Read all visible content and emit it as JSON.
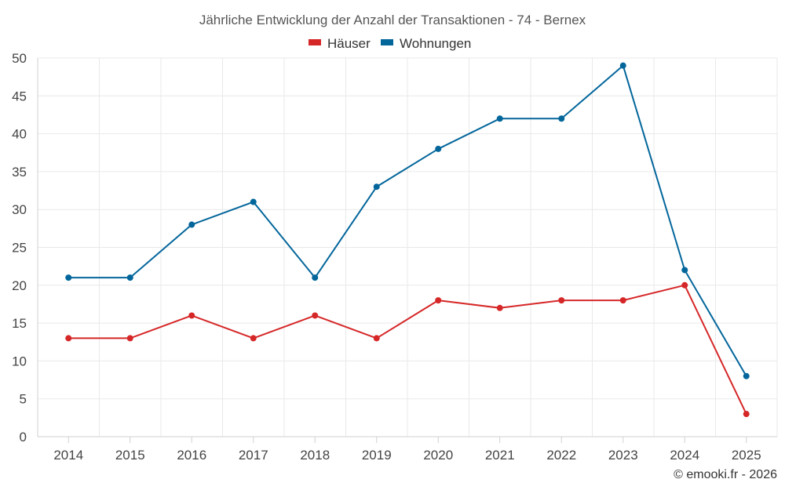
{
  "chart_data": {
    "type": "line",
    "title": "Jährliche Entwicklung der Anzahl der Transaktionen - 74 - Bernex",
    "categories": [
      "2014",
      "2015",
      "2016",
      "2017",
      "2018",
      "2019",
      "2020",
      "2021",
      "2022",
      "2023",
      "2024",
      "2025"
    ],
    "series": [
      {
        "name": "Häuser",
        "color": "#d62728",
        "values": [
          13,
          13,
          16,
          13,
          16,
          13,
          18,
          17,
          18,
          18,
          20,
          3
        ]
      },
      {
        "name": "Wohnungen",
        "color": "#03669b",
        "values": [
          21,
          21,
          28,
          31,
          21,
          33,
          38,
          42,
          42,
          49,
          22,
          8
        ]
      }
    ],
    "ylim": [
      0,
      50
    ],
    "yticks": [
      0,
      5,
      10,
      15,
      20,
      25,
      30,
      35,
      40,
      45,
      50
    ],
    "xlabel": "",
    "ylabel": "",
    "grid": true,
    "legend_position": "top-center"
  },
  "credit": "© emooki.fr - 2026"
}
